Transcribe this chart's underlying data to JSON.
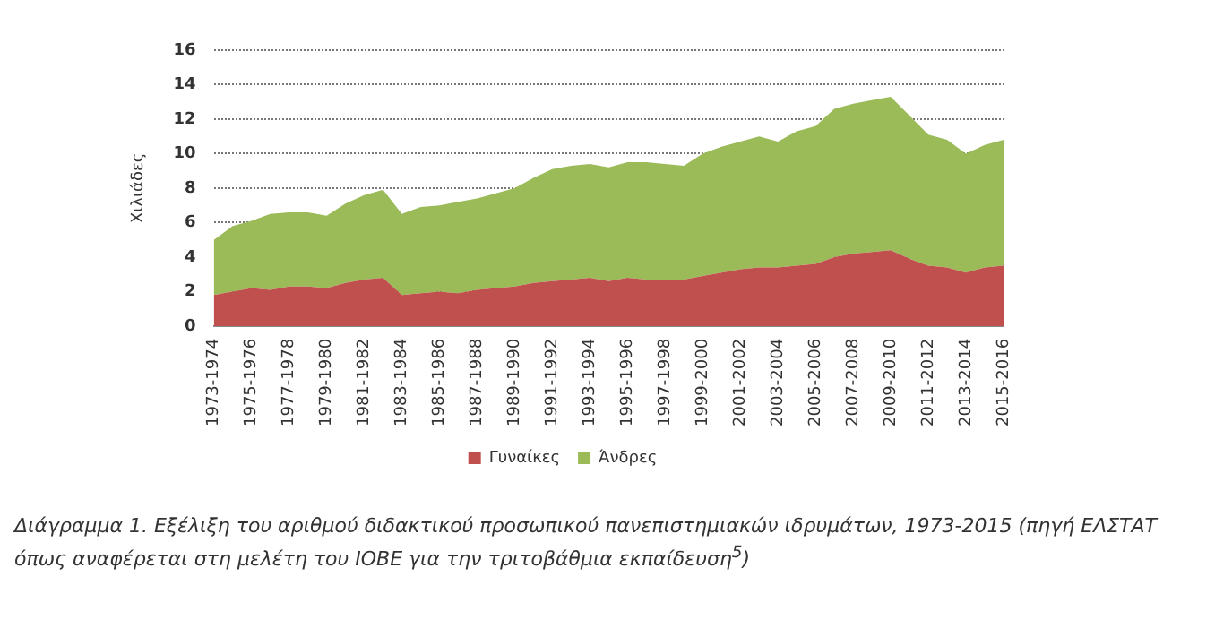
{
  "chart_data": {
    "type": "area",
    "stacked": true,
    "ylabel": "Χιλιάδες",
    "categories": [
      "1973-1974",
      null,
      "1975-1976",
      null,
      "1977-1978",
      null,
      "1979-1980",
      null,
      "1981-1982",
      null,
      "1983-1984",
      null,
      "1985-1986",
      null,
      "1987-1988",
      null,
      "1989-1990",
      null,
      "1991-1992",
      null,
      "1993-1994",
      null,
      "1995-1996",
      null,
      "1997-1998",
      null,
      "1999-2000",
      null,
      "2001-2002",
      null,
      "2003-2004",
      null,
      "2005-2006",
      null,
      "2007-2008",
      null,
      "2009-2010",
      null,
      "2011-2012",
      null,
      "2013-2014",
      null,
      "2015-2016"
    ],
    "series": [
      {
        "name": "Γυναίκες",
        "color": "#c0504d",
        "values": [
          1.8,
          2.0,
          2.2,
          2.1,
          2.3,
          2.3,
          2.2,
          2.5,
          2.7,
          2.8,
          1.8,
          1.9,
          2.0,
          1.9,
          2.1,
          2.2,
          2.3,
          2.5,
          2.6,
          2.7,
          2.8,
          2.6,
          2.8,
          2.7,
          2.7,
          2.7,
          2.9,
          3.1,
          3.3,
          3.4,
          3.4,
          3.5,
          3.6,
          4.0,
          4.2,
          4.3,
          4.4,
          3.9,
          3.5,
          3.4,
          3.1,
          3.4,
          3.5
        ]
      },
      {
        "name": "Άνδρες",
        "color": "#9bbb59",
        "values": [
          3.2,
          3.8,
          3.9,
          4.4,
          4.3,
          4.3,
          4.2,
          4.6,
          4.9,
          5.1,
          4.7,
          5.0,
          5.0,
          5.3,
          5.3,
          5.5,
          5.7,
          6.1,
          6.5,
          6.6,
          6.6,
          6.6,
          6.7,
          6.8,
          6.7,
          6.6,
          7.1,
          7.3,
          7.4,
          7.6,
          7.3,
          7.8,
          8.0,
          8.6,
          8.7,
          8.8,
          8.9,
          8.3,
          7.6,
          7.4,
          6.9,
          7.1,
          7.3
        ]
      }
    ],
    "ylim": [
      0,
      16
    ],
    "yticks": [
      0,
      2,
      4,
      6,
      8,
      10,
      12,
      14,
      16
    ],
    "grid": "y",
    "legend": "bottom",
    "annotations": [
      "Διάγραμμα 1. Εξέλιξη του αριθμού διδακτικού προσωπικού πανεπιστημιακών ιδρυμάτων, 1973-2015 (πηγή ΕΛΣΤΑΤ όπως αναφέρεται στη μελέτη του ΙΟΒΕ για την τριτοβάθμια εκπαίδευση$^{5}$)"
    ]
  }
}
